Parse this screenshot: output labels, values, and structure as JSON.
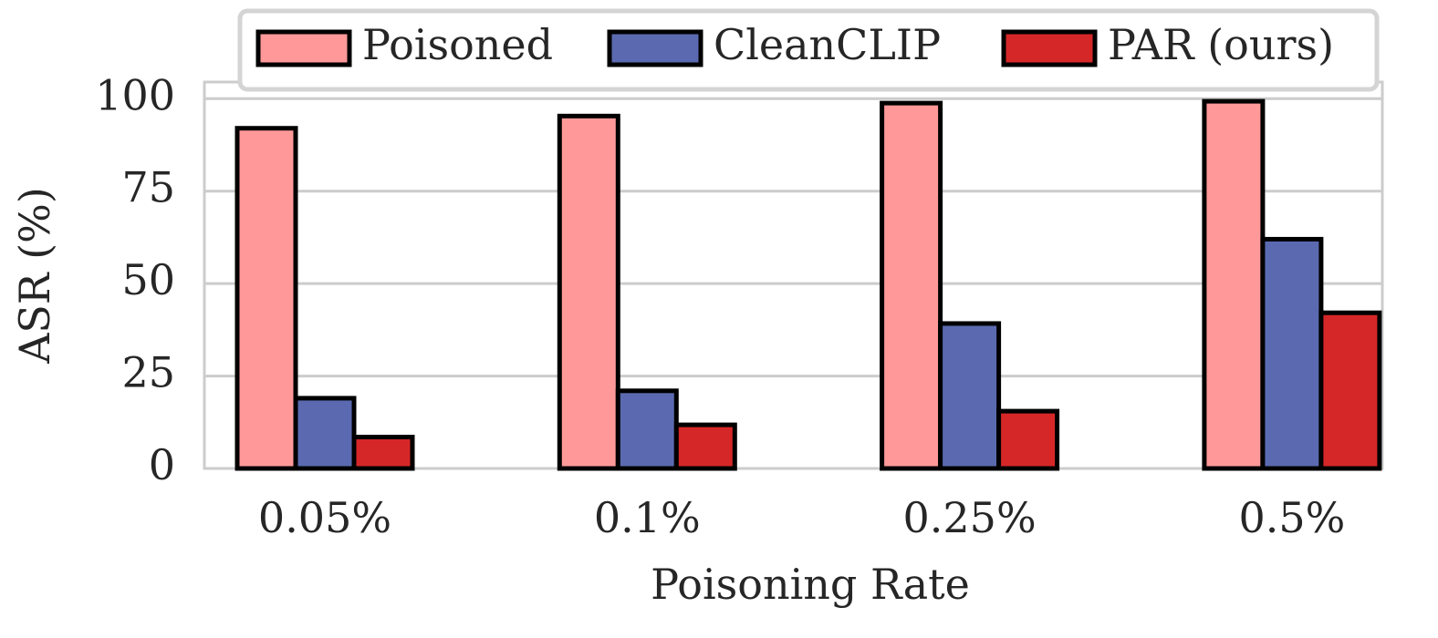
{
  "chart_data": {
    "type": "bar",
    "y_label": "ASR (%)",
    "x_label": "Poisoning Rate",
    "categories": [
      "0.05%",
      "0.1%",
      "0.25%",
      "0.5%"
    ],
    "series": [
      {
        "name": "Poisoned",
        "color": "#ff9999",
        "values": [
          92,
          95.3,
          98.8,
          99.3
        ]
      },
      {
        "name": "CleanCLIP",
        "color": "#5b6ab0",
        "values": [
          19,
          21,
          39.2,
          62
        ]
      },
      {
        "name": "PAR (ours)",
        "color": "#d62728",
        "values": [
          8.5,
          11.8,
          15.5,
          42.1
        ]
      }
    ],
    "ylim": [
      0,
      104.5
    ],
    "yticks": [
      0,
      25,
      50,
      75,
      100
    ],
    "grid": true,
    "legend": "top"
  }
}
